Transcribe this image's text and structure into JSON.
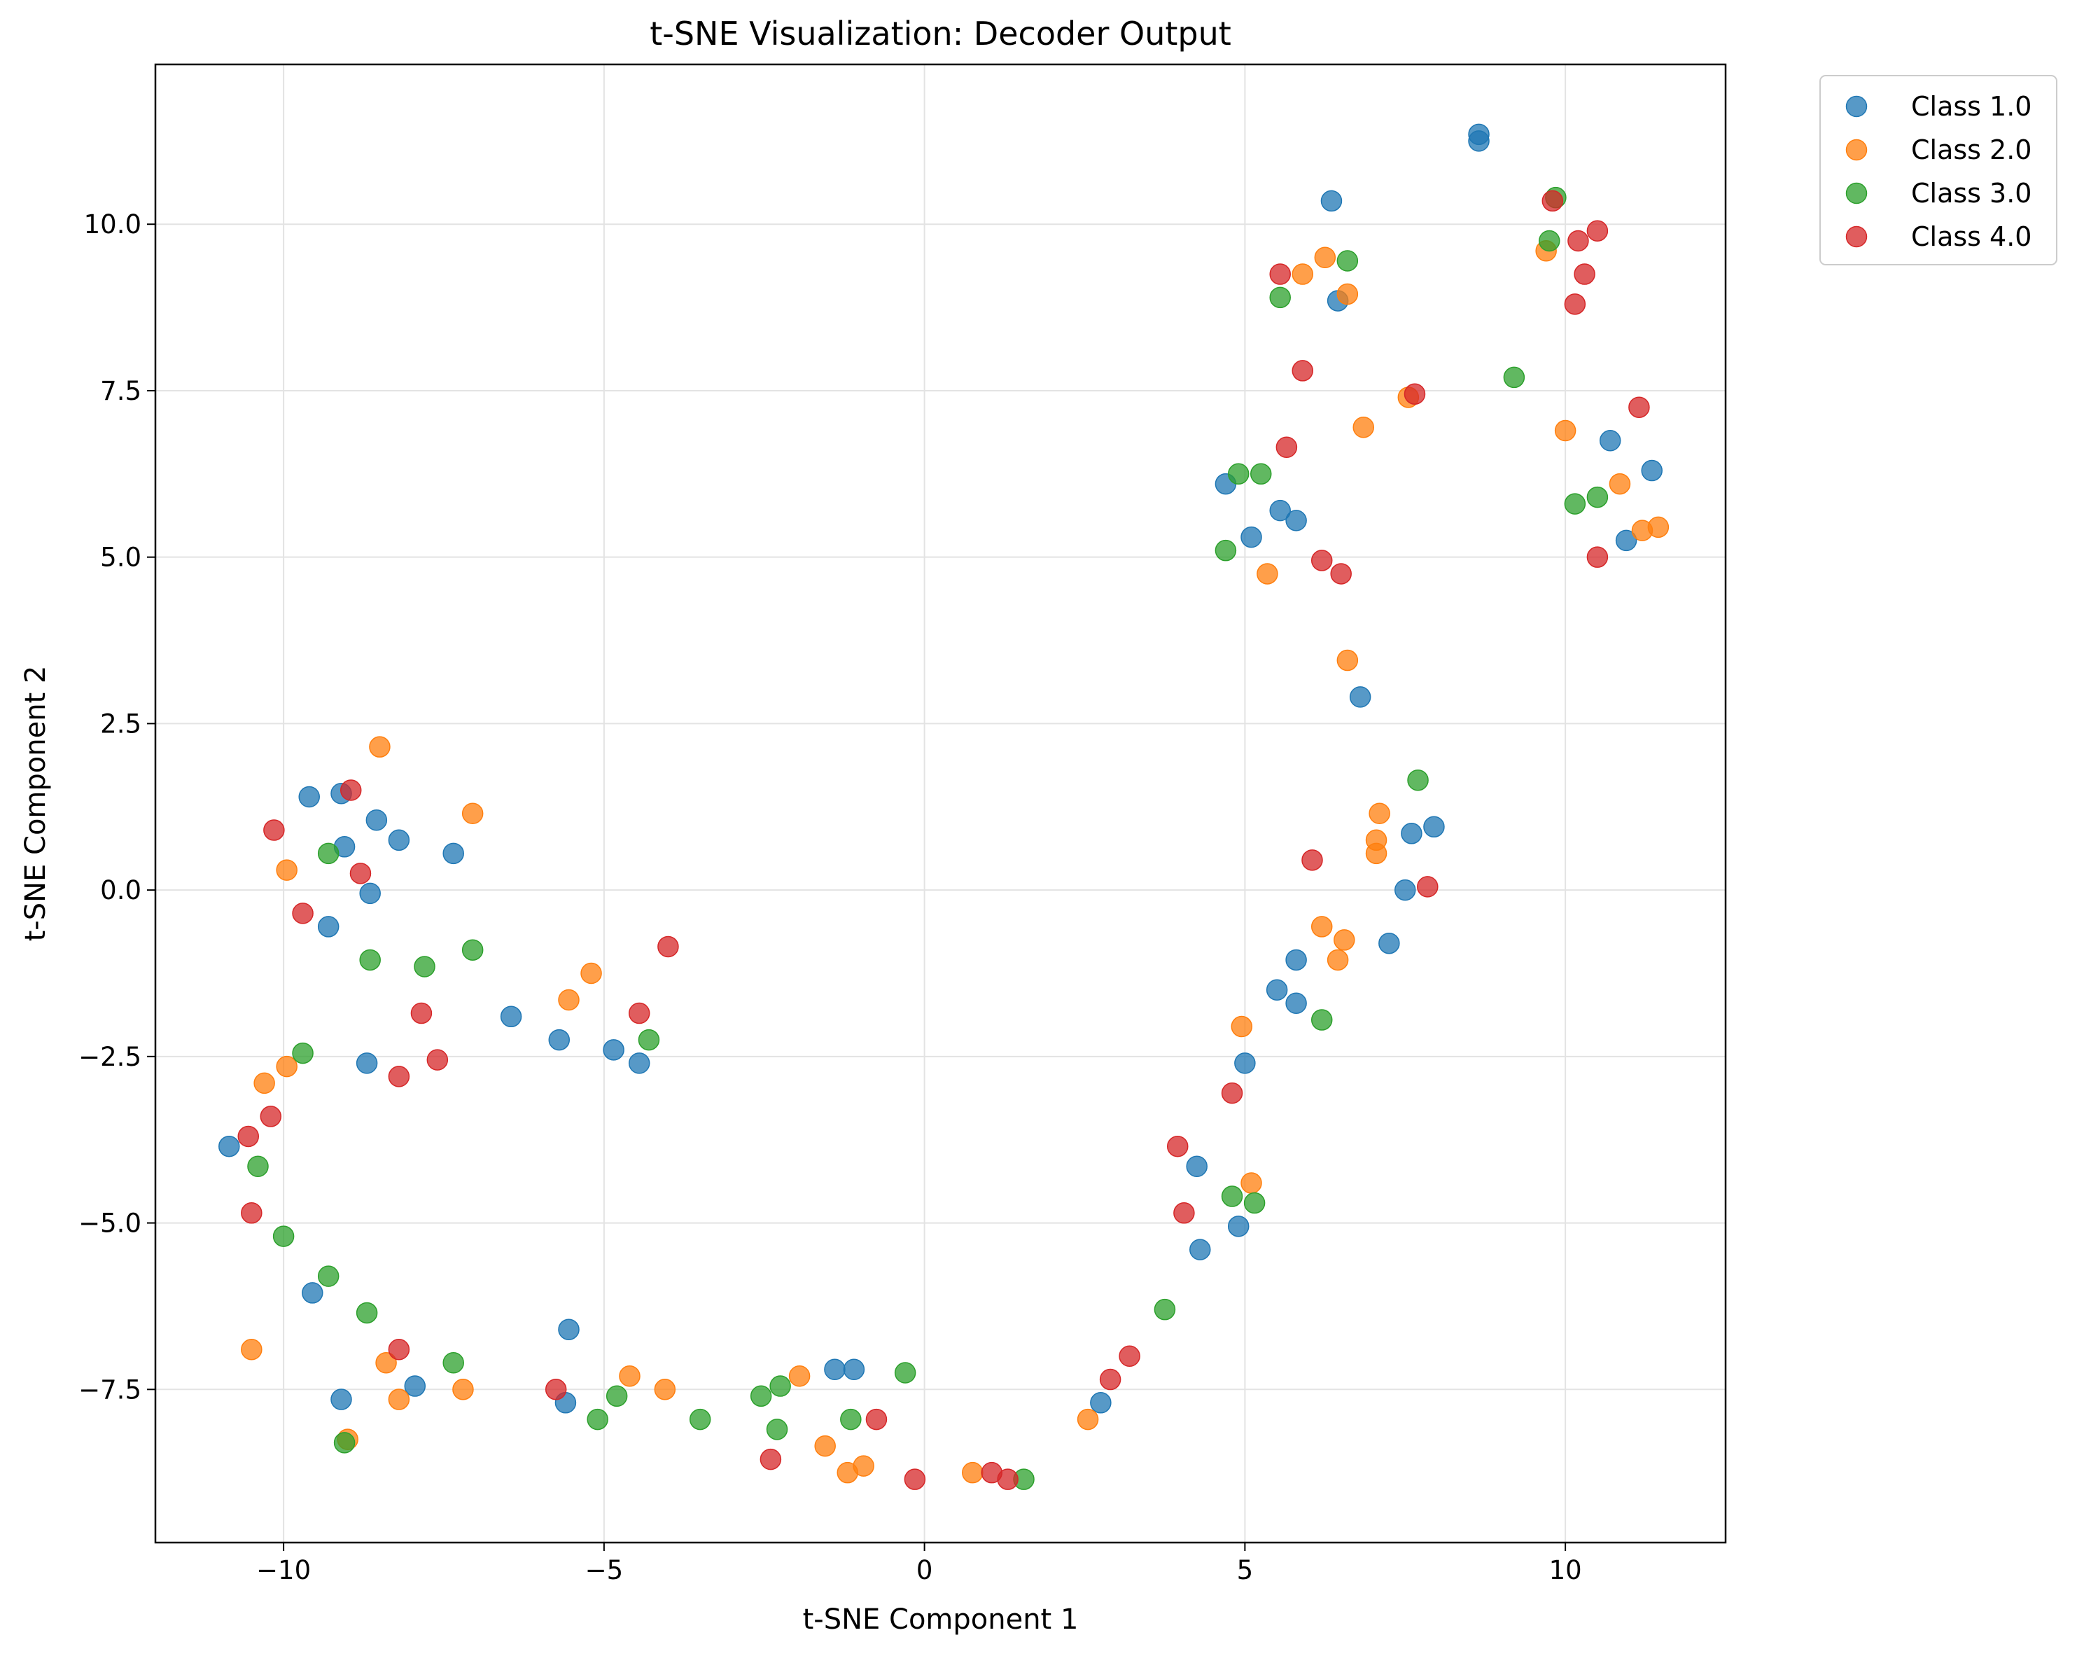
{
  "chart_data": {
    "type": "scatter",
    "title": "t-SNE Visualization: Decoder Output",
    "xlabel": "t-SNE Component 1",
    "ylabel": "t-SNE Component 2",
    "xlim": [
      -12.0,
      12.5
    ],
    "ylim": [
      -9.8,
      12.4
    ],
    "xticks": [
      -10,
      -5,
      0,
      5,
      10
    ],
    "xtick_labels": [
      "−10",
      "−5",
      "0",
      "5",
      "10"
    ],
    "yticks": [
      -7.5,
      -5.0,
      -2.5,
      0.0,
      2.5,
      5.0,
      7.5,
      10.0
    ],
    "ytick_labels": [
      "−7.5",
      "−5.0",
      "−2.5",
      "0.0",
      "2.5",
      "5.0",
      "7.5",
      "10.0"
    ],
    "grid": true,
    "legend_position": "outside upper right",
    "series": [
      {
        "name": "Class 1.0",
        "color": "#1f77b4",
        "points": [
          [
            8.65,
            11.35
          ],
          [
            8.65,
            11.25
          ],
          [
            6.35,
            10.35
          ],
          [
            6.45,
            8.85
          ],
          [
            4.7,
            6.1
          ],
          [
            5.1,
            5.3
          ],
          [
            5.55,
            5.7
          ],
          [
            5.8,
            5.55
          ],
          [
            6.8,
            2.9
          ],
          [
            7.6,
            0.85
          ],
          [
            7.95,
            0.95
          ],
          [
            7.5,
            0.0
          ],
          [
            7.25,
            -0.8
          ],
          [
            5.8,
            -1.05
          ],
          [
            5.5,
            -1.5
          ],
          [
            5.8,
            -1.7
          ],
          [
            5.0,
            -2.6
          ],
          [
            4.25,
            -4.15
          ],
          [
            4.3,
            -5.4
          ],
          [
            4.9,
            -5.05
          ],
          [
            2.75,
            -7.7
          ],
          [
            10.7,
            6.75
          ],
          [
            11.35,
            6.3
          ],
          [
            10.95,
            5.25
          ],
          [
            -9.6,
            1.4
          ],
          [
            -9.1,
            1.45
          ],
          [
            -8.55,
            1.05
          ],
          [
            -9.05,
            0.65
          ],
          [
            -8.2,
            0.75
          ],
          [
            -7.35,
            0.55
          ],
          [
            -8.65,
            -0.05
          ],
          [
            -9.3,
            -0.55
          ],
          [
            -8.7,
            -2.6
          ],
          [
            -6.45,
            -1.9
          ],
          [
            -5.7,
            -2.25
          ],
          [
            -4.85,
            -2.4
          ],
          [
            -4.45,
            -2.6
          ],
          [
            -10.85,
            -3.85
          ],
          [
            -9.55,
            -6.05
          ],
          [
            -9.1,
            -7.65
          ],
          [
            -7.95,
            -7.45
          ],
          [
            -5.55,
            -6.6
          ],
          [
            -5.6,
            -7.7
          ],
          [
            -1.4,
            -7.2
          ],
          [
            -1.1,
            -7.2
          ]
        ]
      },
      {
        "name": "Class 2.0",
        "color": "#ff7f0e",
        "points": [
          [
            6.25,
            9.5
          ],
          [
            5.9,
            9.25
          ],
          [
            6.6,
            8.95
          ],
          [
            7.55,
            7.4
          ],
          [
            6.85,
            6.95
          ],
          [
            5.35,
            4.75
          ],
          [
            6.6,
            3.45
          ],
          [
            7.1,
            1.15
          ],
          [
            7.05,
            0.75
          ],
          [
            7.05,
            0.55
          ],
          [
            6.2,
            -0.55
          ],
          [
            6.55,
            -0.75
          ],
          [
            6.45,
            -1.05
          ],
          [
            4.95,
            -2.05
          ],
          [
            5.1,
            -4.4
          ],
          [
            2.55,
            -7.95
          ],
          [
            0.75,
            -8.75
          ],
          [
            -0.95,
            -8.65
          ],
          [
            -1.2,
            -8.75
          ],
          [
            -1.55,
            -8.35
          ],
          [
            -1.95,
            -7.3
          ],
          [
            -4.05,
            -7.5
          ],
          [
            -4.6,
            -7.3
          ],
          [
            -5.2,
            -1.25
          ],
          [
            -5.55,
            -1.65
          ],
          [
            -7.05,
            1.15
          ],
          [
            -8.5,
            2.15
          ],
          [
            -9.95,
            0.3
          ],
          [
            -10.3,
            -2.9
          ],
          [
            -9.95,
            -2.65
          ],
          [
            -10.5,
            -6.9
          ],
          [
            -8.4,
            -7.1
          ],
          [
            -8.2,
            -7.65
          ],
          [
            -7.2,
            -7.5
          ],
          [
            -9.0,
            -8.25
          ],
          [
            9.7,
            9.6
          ],
          [
            10.0,
            6.9
          ],
          [
            10.85,
            6.1
          ],
          [
            11.2,
            5.4
          ],
          [
            11.45,
            5.45
          ]
        ]
      },
      {
        "name": "Class 3.0",
        "color": "#2ca02c",
        "points": [
          [
            9.85,
            10.4
          ],
          [
            9.75,
            9.75
          ],
          [
            6.6,
            9.45
          ],
          [
            5.55,
            8.9
          ],
          [
            9.2,
            7.7
          ],
          [
            4.9,
            6.25
          ],
          [
            5.25,
            6.25
          ],
          [
            4.7,
            5.1
          ],
          [
            10.15,
            5.8
          ],
          [
            10.5,
            5.9
          ],
          [
            7.7,
            1.65
          ],
          [
            6.2,
            -1.95
          ],
          [
            4.8,
            -4.6
          ],
          [
            5.15,
            -4.7
          ],
          [
            3.75,
            -6.3
          ],
          [
            1.55,
            -8.85
          ],
          [
            -0.3,
            -7.25
          ],
          [
            -1.15,
            -7.95
          ],
          [
            -2.25,
            -7.45
          ],
          [
            -2.55,
            -7.6
          ],
          [
            -2.3,
            -8.1
          ],
          [
            -3.5,
            -7.95
          ],
          [
            -4.8,
            -7.6
          ],
          [
            -5.1,
            -7.95
          ],
          [
            -4.3,
            -2.25
          ],
          [
            -7.05,
            -0.9
          ],
          [
            -7.8,
            -1.15
          ],
          [
            -8.65,
            -1.05
          ],
          [
            -9.3,
            0.55
          ],
          [
            -9.7,
            -2.45
          ],
          [
            -10.4,
            -4.15
          ],
          [
            -10.0,
            -5.2
          ],
          [
            -9.3,
            -5.8
          ],
          [
            -8.7,
            -6.35
          ],
          [
            -7.35,
            -7.1
          ],
          [
            -9.05,
            -8.3
          ]
        ]
      },
      {
        "name": "Class 4.0",
        "color": "#d62728",
        "points": [
          [
            9.8,
            10.35
          ],
          [
            10.2,
            9.75
          ],
          [
            10.5,
            9.9
          ],
          [
            10.3,
            9.25
          ],
          [
            10.15,
            8.8
          ],
          [
            11.15,
            7.25
          ],
          [
            10.5,
            5.0
          ],
          [
            5.55,
            9.25
          ],
          [
            5.9,
            7.8
          ],
          [
            7.65,
            7.45
          ],
          [
            5.65,
            6.65
          ],
          [
            6.2,
            4.95
          ],
          [
            6.5,
            4.75
          ],
          [
            6.05,
            0.45
          ],
          [
            7.85,
            0.05
          ],
          [
            4.8,
            -3.05
          ],
          [
            3.95,
            -3.85
          ],
          [
            4.05,
            -4.85
          ],
          [
            3.2,
            -7.0
          ],
          [
            2.9,
            -7.35
          ],
          [
            1.3,
            -8.85
          ],
          [
            1.05,
            -8.75
          ],
          [
            -0.15,
            -8.85
          ],
          [
            -0.75,
            -7.95
          ],
          [
            -2.4,
            -8.55
          ],
          [
            -5.75,
            -7.5
          ],
          [
            -4.0,
            -0.85
          ],
          [
            -4.45,
            -1.85
          ],
          [
            -7.6,
            -2.55
          ],
          [
            -7.85,
            -1.85
          ],
          [
            -8.2,
            -2.8
          ],
          [
            -8.2,
            -6.9
          ],
          [
            -8.8,
            0.25
          ],
          [
            -8.95,
            1.5
          ],
          [
            -9.7,
            -0.35
          ],
          [
            -10.15,
            0.9
          ],
          [
            -10.2,
            -3.4
          ],
          [
            -10.55,
            -3.7
          ],
          [
            -10.5,
            -4.85
          ]
        ]
      }
    ]
  }
}
